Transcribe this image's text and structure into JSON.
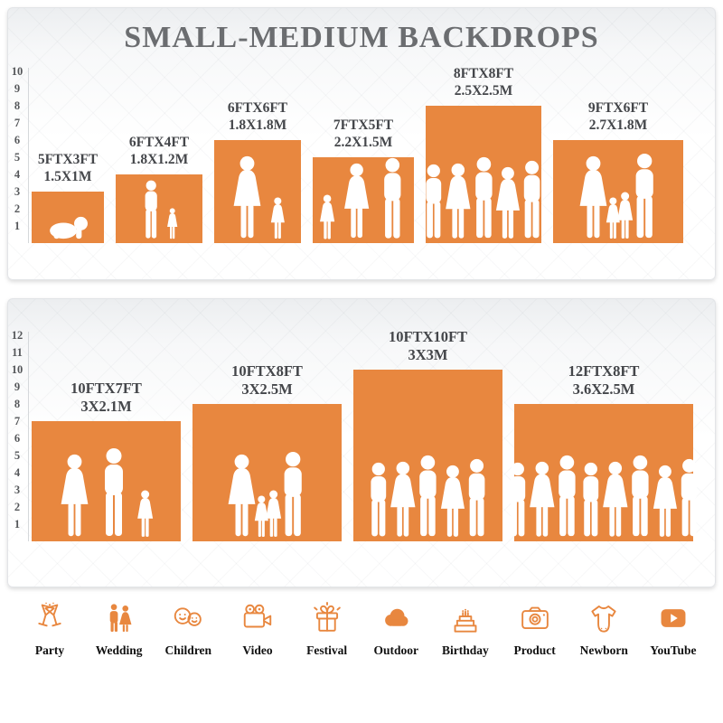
{
  "colors": {
    "accent_orange": "#E8873F",
    "title_gray": "#6B6D70",
    "label_gray": "#44464A",
    "axis_gray": "#55575A",
    "category_text": "#111111"
  },
  "chart_data": [
    {
      "type": "bar",
      "title": "SMALL-MEDIUM BACKDROPS",
      "ylim": [
        0,
        10
      ],
      "axis_ticks": [
        1,
        2,
        3,
        4,
        5,
        6,
        7,
        8,
        9,
        10
      ],
      "legend": "none",
      "grid": "off",
      "bars": [
        {
          "size_ft": "5FTX3FT",
          "size_m": "1.5X1M",
          "width_ft": 5,
          "height_ft": 3,
          "people": [
            "crawling-baby"
          ]
        },
        {
          "size_ft": "6FTX4FT",
          "size_m": "1.8X1.2M",
          "width_ft": 6,
          "height_ft": 4,
          "people": [
            "man",
            "girl"
          ]
        },
        {
          "size_ft": "6FTX6FT",
          "size_m": "1.8X1.8M",
          "width_ft": 6,
          "height_ft": 6,
          "people": [
            "woman",
            "girl"
          ]
        },
        {
          "size_ft": "7FTX5FT",
          "size_m": "2.2X1.5M",
          "width_ft": 7,
          "height_ft": 5,
          "people": [
            "girl",
            "woman",
            "man"
          ]
        },
        {
          "size_ft": "8FTX8FT",
          "size_m": "2.5X2.5M",
          "width_ft": 8,
          "height_ft": 8,
          "people": [
            "man",
            "woman",
            "man",
            "woman",
            "man"
          ]
        },
        {
          "size_ft": "9FTX6FT",
          "size_m": "2.7X1.8M",
          "width_ft": 9,
          "height_ft": 6,
          "people": [
            "woman",
            "girl",
            "girl",
            "man"
          ]
        }
      ]
    },
    {
      "type": "bar",
      "title": "",
      "ylim": [
        0,
        12
      ],
      "axis_ticks": [
        1,
        2,
        3,
        4,
        5,
        6,
        7,
        8,
        9,
        10,
        11,
        12
      ],
      "legend": "none",
      "grid": "off",
      "bars": [
        {
          "size_ft": "10FTX7FT",
          "size_m": "3X2.1M",
          "width_ft": 10,
          "height_ft": 7,
          "people": [
            "woman",
            "man",
            "girl"
          ]
        },
        {
          "size_ft": "10FTX8FT",
          "size_m": "3X2.5M",
          "width_ft": 10,
          "height_ft": 8,
          "people": [
            "woman",
            "girl",
            "girl",
            "man"
          ]
        },
        {
          "size_ft": "10FTX10FT",
          "size_m": "3X3M",
          "width_ft": 10,
          "height_ft": 10,
          "people": [
            "man",
            "woman",
            "man",
            "woman",
            "man"
          ]
        },
        {
          "size_ft": "12FTX8FT",
          "size_m": "3.6X2.5M",
          "width_ft": 12,
          "height_ft": 8,
          "people": [
            "man",
            "woman",
            "man",
            "man",
            "woman",
            "man",
            "woman",
            "man"
          ]
        }
      ]
    }
  ],
  "categories": [
    {
      "label": "Party",
      "icon": "party-icon"
    },
    {
      "label": "Wedding",
      "icon": "wedding-icon"
    },
    {
      "label": "Children",
      "icon": "children-icon"
    },
    {
      "label": "Video",
      "icon": "video-icon"
    },
    {
      "label": "Festival",
      "icon": "festival-icon"
    },
    {
      "label": "Outdoor",
      "icon": "outdoor-icon"
    },
    {
      "label": "Birthday",
      "icon": "birthday-icon"
    },
    {
      "label": "Product",
      "icon": "product-icon"
    },
    {
      "label": "Newborn",
      "icon": "newborn-icon"
    },
    {
      "label": "YouTube",
      "icon": "youtube-icon"
    }
  ]
}
